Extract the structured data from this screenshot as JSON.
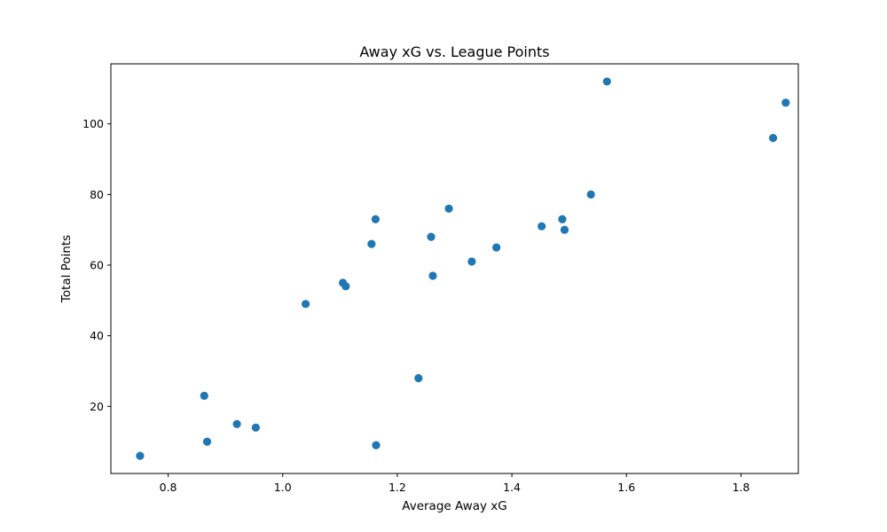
{
  "chart_data": {
    "type": "scatter",
    "title": "Away xG vs. League Points",
    "xlabel": "Average Away xG",
    "ylabel": "Total Points",
    "xlim": [
      0.7,
      1.9
    ],
    "ylim": [
      1,
      117
    ],
    "xticks": [
      0.8,
      1.0,
      1.2,
      1.4,
      1.6,
      1.8
    ],
    "xtick_labels": [
      "0.8",
      "1.0",
      "1.2",
      "1.4",
      "1.6",
      "1.8"
    ],
    "yticks": [
      20,
      40,
      60,
      80,
      100
    ],
    "ytick_labels": [
      "20",
      "40",
      "60",
      "80",
      "100"
    ],
    "grid": false,
    "marker_color": "#1f77b4",
    "points": [
      {
        "x": 0.751,
        "y": 6
      },
      {
        "x": 0.863,
        "y": 23
      },
      {
        "x": 0.868,
        "y": 10
      },
      {
        "x": 0.92,
        "y": 15
      },
      {
        "x": 0.953,
        "y": 14
      },
      {
        "x": 1.04,
        "y": 49
      },
      {
        "x": 1.105,
        "y": 55
      },
      {
        "x": 1.11,
        "y": 54
      },
      {
        "x": 1.155,
        "y": 66
      },
      {
        "x": 1.162,
        "y": 73
      },
      {
        "x": 1.163,
        "y": 9
      },
      {
        "x": 1.237,
        "y": 28
      },
      {
        "x": 1.259,
        "y": 68
      },
      {
        "x": 1.262,
        "y": 57
      },
      {
        "x": 1.29,
        "y": 76
      },
      {
        "x": 1.33,
        "y": 61
      },
      {
        "x": 1.373,
        "y": 65
      },
      {
        "x": 1.452,
        "y": 71
      },
      {
        "x": 1.488,
        "y": 73
      },
      {
        "x": 1.492,
        "y": 70
      },
      {
        "x": 1.538,
        "y": 80
      },
      {
        "x": 1.566,
        "y": 112
      },
      {
        "x": 1.856,
        "y": 96
      },
      {
        "x": 1.878,
        "y": 106
      }
    ]
  }
}
